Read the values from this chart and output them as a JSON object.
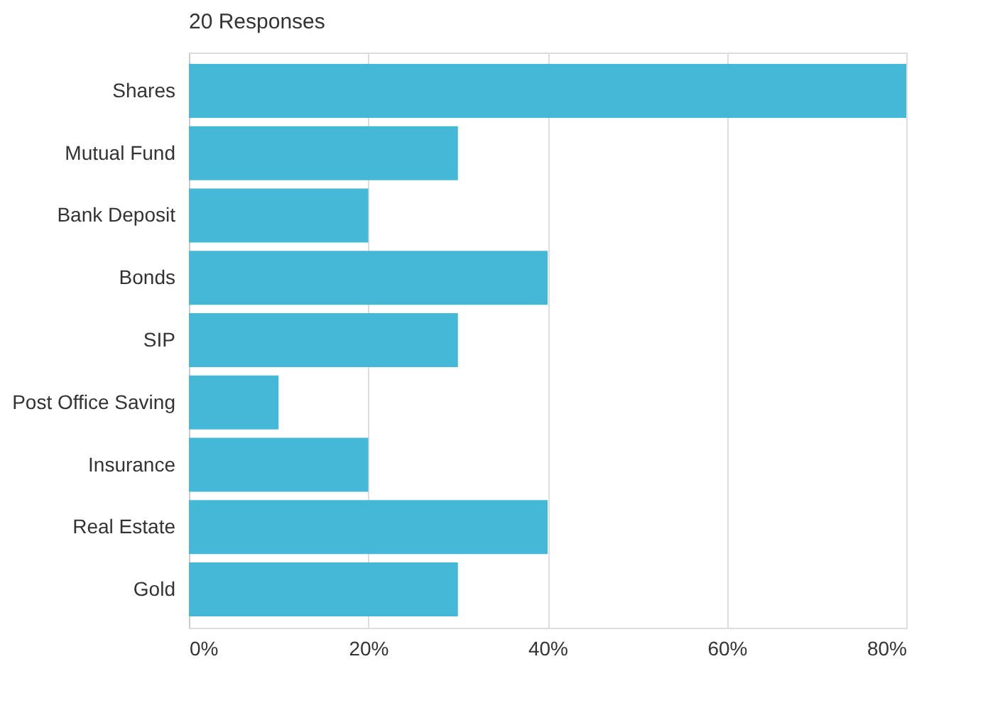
{
  "chart_data": {
    "type": "bar",
    "orientation": "horizontal",
    "title": "20 Responses",
    "categories": [
      "Shares",
      "Mutual Fund",
      "Bank Deposit",
      "Bonds",
      "SIP",
      "Post Office Saving",
      "Insurance",
      "Real Estate",
      "Gold"
    ],
    "values": [
      80,
      30,
      20,
      40,
      30,
      10,
      20,
      40,
      30
    ],
    "color": "#45b8d8",
    "xlim": [
      0,
      80
    ],
    "xticks": [
      {
        "value": 0,
        "label": "0%"
      },
      {
        "value": 20,
        "label": "20%"
      },
      {
        "value": 40,
        "label": "40%"
      },
      {
        "value": 60,
        "label": "60%"
      },
      {
        "value": 80,
        "label": "80%"
      }
    ],
    "grid": "x"
  }
}
